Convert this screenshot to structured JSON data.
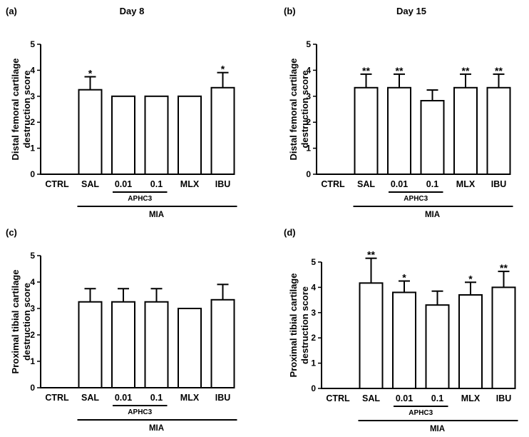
{
  "chart_data": [
    {
      "type": "bar",
      "panel_label": "(a)",
      "title": "Day 8",
      "ylabel": [
        "Distal femoral cartilage",
        "destruction score"
      ],
      "xlabel": "",
      "ylim": [
        0,
        5
      ],
      "yticks": [
        "0",
        "1",
        "2",
        "3",
        "4",
        "5"
      ],
      "categories": [
        "CTRL",
        "SAL",
        "0.01",
        "0.1",
        "MLX",
        "IBU"
      ],
      "values": [
        0,
        3.25,
        3.0,
        3.0,
        3.0,
        3.33
      ],
      "errors": [
        0,
        0.5,
        0,
        0,
        0,
        0.58
      ],
      "significance": [
        "",
        "*",
        "",
        "",
        "",
        "*"
      ],
      "group_labels": {
        "sub": "APHC3",
        "main": "MIA"
      }
    },
    {
      "type": "bar",
      "panel_label": "(b)",
      "title": "Day 15",
      "ylabel": [
        "Distal femoral cartilage",
        "destruction score"
      ],
      "xlabel": "",
      "ylim": [
        0,
        5
      ],
      "yticks": [
        "0",
        "1",
        "2",
        "3",
        "4",
        "5"
      ],
      "categories": [
        "CTRL",
        "SAL",
        "0.01",
        "0.1",
        "MLX",
        "IBU"
      ],
      "values": [
        0,
        3.33,
        3.33,
        2.83,
        3.33,
        3.33
      ],
      "errors": [
        0,
        0.52,
        0.52,
        0.41,
        0.52,
        0.52
      ],
      "significance": [
        "",
        "**",
        "**",
        "",
        "**",
        "**"
      ],
      "group_labels": {
        "sub": "APHC3",
        "main": "MIA"
      }
    },
    {
      "type": "bar",
      "panel_label": "(c)",
      "title": "",
      "ylabel": [
        "Proximal tibial cartilage",
        "destruction score"
      ],
      "xlabel": "",
      "ylim": [
        0,
        5
      ],
      "yticks": [
        "0",
        "1",
        "2",
        "3",
        "4",
        "5"
      ],
      "categories": [
        "CTRL",
        "SAL",
        "0.01",
        "0.1",
        "MLX",
        "IBU"
      ],
      "values": [
        0,
        3.25,
        3.25,
        3.25,
        3.0,
        3.33
      ],
      "errors": [
        0,
        0.5,
        0.5,
        0.5,
        0,
        0.58
      ],
      "significance": [
        "",
        "",
        "",
        "",
        "",
        ""
      ],
      "group_labels": {
        "sub": "APHC3",
        "main": "MIA"
      }
    },
    {
      "type": "bar",
      "panel_label": "(d)",
      "title": "",
      "ylabel": [
        "Proximal tibial cartilage",
        "destruction score"
      ],
      "xlabel": "",
      "ylim": [
        0,
        5
      ],
      "yticks": [
        "0",
        "1",
        "2",
        "3",
        "4",
        "5"
      ],
      "categories": [
        "CTRL",
        "SAL",
        "0.01",
        "0.1",
        "MLX",
        "IBU"
      ],
      "values": [
        0,
        4.17,
        3.8,
        3.3,
        3.7,
        4.0
      ],
      "errors": [
        0,
        0.98,
        0.45,
        0.55,
        0.5,
        0.63
      ],
      "significance": [
        "",
        "**",
        "*",
        "",
        "*",
        "**"
      ],
      "group_labels": {
        "sub": "APHC3",
        "main": "MIA"
      }
    }
  ]
}
